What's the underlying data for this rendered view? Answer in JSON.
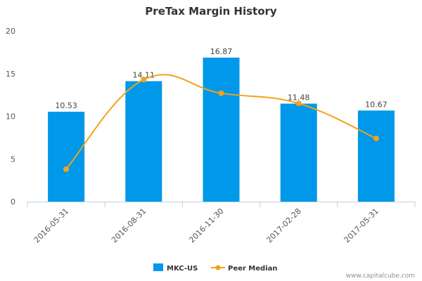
{
  "chart_data": {
    "type": "bar",
    "title": "PreTax Margin History",
    "xlabel": "",
    "ylabel": "",
    "ylim": [
      0,
      20
    ],
    "yticks": [
      0,
      5,
      10,
      15,
      20
    ],
    "categories": [
      "2016-05-31",
      "2016-08-31",
      "2016-11-30",
      "2017-02-28",
      "2017-05-31"
    ],
    "series": [
      {
        "name": "MKC-US",
        "kind": "bar",
        "color": "#0098e8",
        "values": [
          10.53,
          14.11,
          16.87,
          11.48,
          10.67
        ],
        "labels": [
          "10.53",
          "14.11",
          "16.87",
          "11.48",
          "10.67"
        ]
      },
      {
        "name": "Peer Median",
        "kind": "line",
        "smooth": true,
        "color": "#f4a11d",
        "values": [
          3.8,
          14.3,
          12.7,
          11.5,
          7.4
        ]
      }
    ],
    "grid": false,
    "legend_position": "bottom-center"
  },
  "credit": "www.capitalcube.com"
}
